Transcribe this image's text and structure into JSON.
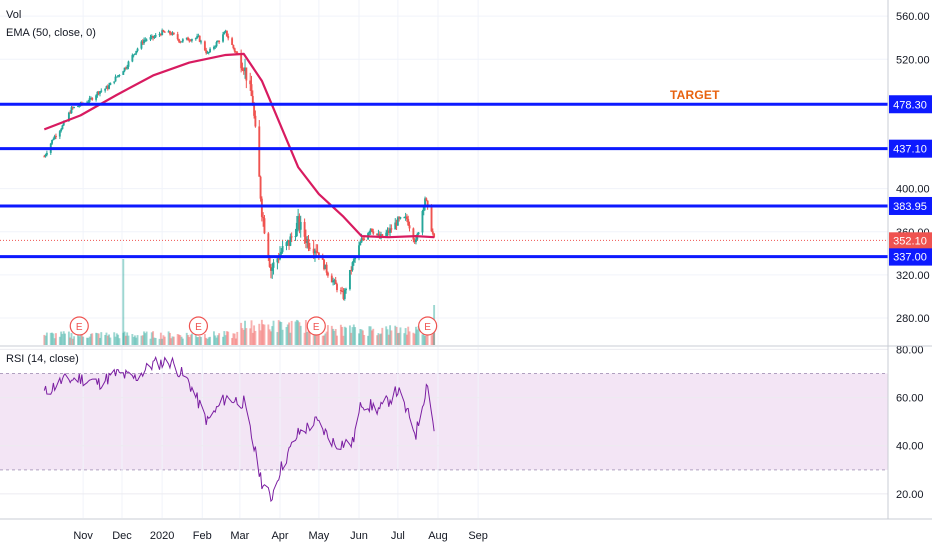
{
  "chart_data": {
    "type": "candlestick",
    "indicators": {
      "volume": "Vol",
      "ema": "EMA (50, close, 0)",
      "rsi": "RSI (14, close)"
    },
    "annotation": "TARGET",
    "x_ticks": [
      "Nov",
      "Dec",
      "2020",
      "Feb",
      "Mar",
      "Apr",
      "May",
      "Jun",
      "Jul",
      "Aug",
      "Sep"
    ],
    "price_axis": {
      "ticks": [
        "280.00",
        "320.00",
        "360.00",
        "400.00",
        "520.00",
        "560.00"
      ],
      "ylim": [
        255,
        575
      ]
    },
    "rsi_axis": {
      "ticks": [
        "20.00",
        "40.00",
        "60.00",
        "80.00"
      ],
      "ylim": [
        10,
        81
      ],
      "band": [
        30,
        70
      ]
    },
    "levels": [
      {
        "value": 478.3,
        "label": "478.30",
        "color": "#0d1aff"
      },
      {
        "value": 437.1,
        "label": "437.10",
        "color": "#0d1aff"
      },
      {
        "value": 383.95,
        "label": "383.95",
        "color": "#0d1aff"
      },
      {
        "value": 337.0,
        "label": "337.00",
        "color": "#0d1aff"
      }
    ],
    "last_price": {
      "value": 352.1,
      "label": "352.10",
      "color": "#ef5350"
    },
    "earnings_markers": [
      "E",
      "E",
      "E",
      "E"
    ],
    "earnings_dates": [
      "Oct 29",
      "Jan 29",
      "Apr 29",
      "Jul 24"
    ],
    "colors": {
      "up": "#26a69a",
      "down": "#ef5350",
      "ema": "#d81b60",
      "rsi": "#7b1fa2",
      "rsi_band": "#f3e5f5"
    },
    "price_series": [
      [
        "2019-10-02",
        430
      ],
      [
        "2019-10-09",
        447
      ],
      [
        "2019-10-16",
        458
      ],
      [
        "2019-10-23",
        474
      ],
      [
        "2019-10-30",
        478
      ],
      [
        "2019-11-06",
        482
      ],
      [
        "2019-11-13",
        490
      ],
      [
        "2019-11-20",
        494
      ],
      [
        "2019-11-27",
        504
      ],
      [
        "2019-12-04",
        513
      ],
      [
        "2019-12-11",
        527
      ],
      [
        "2019-12-18",
        538
      ],
      [
        "2019-12-25",
        540
      ],
      [
        "2020-01-01",
        545
      ],
      [
        "2020-01-08",
        544
      ],
      [
        "2020-01-15",
        537
      ],
      [
        "2020-01-22",
        539
      ],
      [
        "2020-01-29",
        540
      ],
      [
        "2020-02-05",
        525
      ],
      [
        "2020-02-12",
        535
      ],
      [
        "2020-02-19",
        545
      ],
      [
        "2020-02-26",
        528
      ],
      [
        "2020-03-04",
        515
      ],
      [
        "2020-03-11",
        480
      ],
      [
        "2020-03-18",
        380
      ],
      [
        "2020-03-25",
        325
      ],
      [
        "2020-04-01",
        340
      ],
      [
        "2020-04-08",
        350
      ],
      [
        "2020-04-15",
        368
      ],
      [
        "2020-04-22",
        352
      ],
      [
        "2020-04-29",
        345
      ],
      [
        "2020-05-06",
        326
      ],
      [
        "2020-05-13",
        312
      ],
      [
        "2020-05-20",
        300
      ],
      [
        "2020-05-27",
        330
      ],
      [
        "2020-06-03",
        352
      ],
      [
        "2020-06-10",
        364
      ],
      [
        "2020-06-17",
        354
      ],
      [
        "2020-06-24",
        360
      ],
      [
        "2020-07-01",
        370
      ],
      [
        "2020-07-08",
        372
      ],
      [
        "2020-07-15",
        350
      ],
      [
        "2020-07-22",
        392
      ],
      [
        "2020-07-29",
        352
      ]
    ],
    "ema_series": [
      [
        "2019-10-02",
        455
      ],
      [
        "2019-10-30",
        468
      ],
      [
        "2019-11-27",
        487
      ],
      [
        "2019-12-25",
        505
      ],
      [
        "2020-01-22",
        517
      ],
      [
        "2020-02-19",
        524
      ],
      [
        "2020-03-04",
        525
      ],
      [
        "2020-03-18",
        500
      ],
      [
        "2020-04-01",
        460
      ],
      [
        "2020-04-15",
        420
      ],
      [
        "2020-05-01",
        395
      ],
      [
        "2020-05-20",
        374
      ],
      [
        "2020-06-03",
        356
      ],
      [
        "2020-06-24",
        355
      ],
      [
        "2020-07-15",
        356
      ],
      [
        "2020-07-29",
        355
      ]
    ],
    "rsi_series": [
      [
        "2019-10-02",
        62
      ],
      [
        "2019-10-16",
        67
      ],
      [
        "2019-10-30",
        68
      ],
      [
        "2019-11-13",
        66
      ],
      [
        "2019-11-27",
        70
      ],
      [
        "2019-12-11",
        68
      ],
      [
        "2019-12-25",
        74
      ],
      [
        "2020-01-08",
        75
      ],
      [
        "2020-01-22",
        66
      ],
      [
        "2020-02-05",
        50
      ],
      [
        "2020-02-19",
        60
      ],
      [
        "2020-03-04",
        58
      ],
      [
        "2020-03-18",
        25
      ],
      [
        "2020-03-25",
        18
      ],
      [
        "2020-04-01",
        30
      ],
      [
        "2020-04-15",
        45
      ],
      [
        "2020-04-29",
        50
      ],
      [
        "2020-05-13",
        41
      ],
      [
        "2020-05-27",
        41
      ],
      [
        "2020-06-03",
        58
      ],
      [
        "2020-06-17",
        55
      ],
      [
        "2020-07-01",
        63
      ],
      [
        "2020-07-15",
        45
      ],
      [
        "2020-07-24",
        67
      ],
      [
        "2020-07-29",
        46
      ]
    ]
  }
}
